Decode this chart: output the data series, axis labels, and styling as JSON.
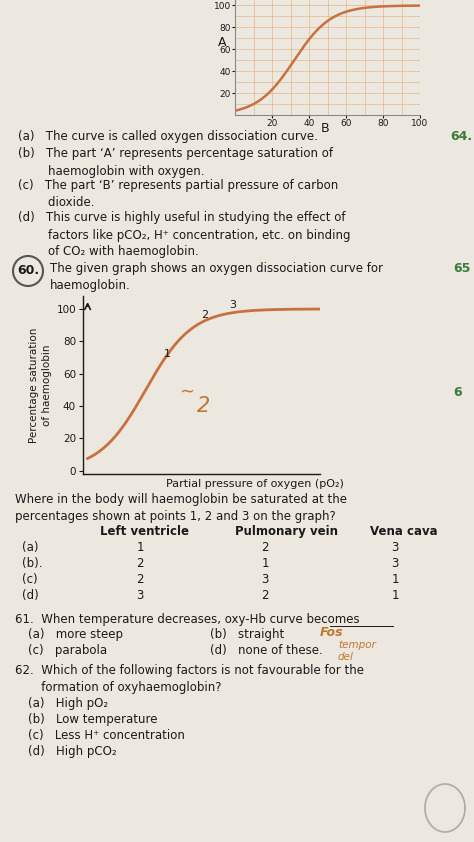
{
  "bg_color": "#ede8df",
  "top_graph": {
    "curve_color": "#c87040",
    "grid_color": "#e0b888",
    "grid_color2": "#d4956a"
  },
  "answers_63": [
    "(a)   The curve is called oxygen dissociation curve.",
    "(b)   The part ‘A’ represents percentage saturation of\n        haemoglobin with oxygen.",
    "(c)   The part ‘B’ represents partial pressure of carbon\n        dioxide.",
    "(d)   This curve is highly useful in studying the effect of\n        factors like pCO₂, H⁺ concentration, etc. on binding\n        of CO₂ with haemoglobin."
  ],
  "q60_intro": "The given graph shows an oxygen dissociation curve for\nhaemoglobin.",
  "q60_graph_ylabel": "Percentage saturation\nof haemoglobin",
  "q60_graph_xlabel": "Partial pressure of oxygen (pO₂)",
  "curve_color": "#c87040",
  "q60b_text": "Where in the body will haemoglobin be saturated at the\npercentages shown at points 1, 2 and 3 on the graph?",
  "table_headers": [
    "Left ventricle",
    "Pulmonary vein",
    "Vena cava"
  ],
  "table_rows": [
    [
      "(a)",
      "1",
      "2",
      "3"
    ],
    [
      "(b).",
      "2",
      "1",
      "3"
    ],
    [
      "(c)",
      "2",
      "3",
      "1"
    ],
    [
      "(d)",
      "3",
      "2",
      "1"
    ]
  ],
  "q61_text": "61.  When temperature decreases, oxy-Hb curve becomes",
  "q61_opts": [
    [
      "(a)   more steep",
      "(b)   straight"
    ],
    [
      "(c)   parabola",
      "(d)   none of these."
    ]
  ],
  "q62_text": "62.  Which of the following factors is not favourable for the\n       formation of oxyhaemoglobin?",
  "q62_opts": [
    "(a)   High pO₂",
    "(b)   Low temperature",
    "(c)   Less H⁺ concentration",
    "(d)   High pCO₂"
  ],
  "fc": "#1a1a1a",
  "green": "#3a7a3a",
  "orange_hw": "#c07830"
}
